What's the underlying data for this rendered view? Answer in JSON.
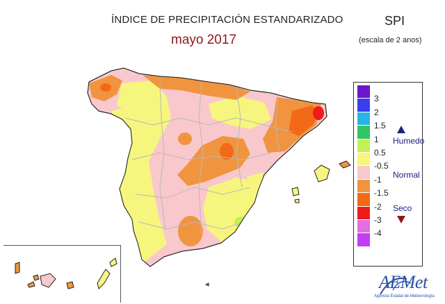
{
  "title": "ÍNDICE DE PRECIPITACIÓN ESTANDARIZADO",
  "subtitle": "mayo 2017",
  "index_name": "SPI",
  "scale_note": "(escala de 2 anos)",
  "legend": {
    "classes": [
      {
        "color": "#6b16c9",
        "label": "3"
      },
      {
        "color": "#3d3df0",
        "label": "2"
      },
      {
        "color": "#27b4e8",
        "label": "1.5"
      },
      {
        "color": "#33c463",
        "label": "1"
      },
      {
        "color": "#c3f058",
        "label": "0.5"
      },
      {
        "color": "#f6f67e",
        "label": "-0.5"
      },
      {
        "color": "#f9c8cc",
        "label": "-1"
      },
      {
        "color": "#f19440",
        "label": "-1.5"
      },
      {
        "color": "#f26a18",
        "label": "-2"
      },
      {
        "color": "#ef1a1a",
        "label": "-3"
      },
      {
        "color": "#e36ee0",
        "label": "-4"
      },
      {
        "color": "#c23df5",
        "label": ""
      }
    ],
    "wet_label": "Humedo",
    "normal_label": "Normal",
    "dry_label": "Seco"
  },
  "colors": {
    "normal": "#f9c8cc",
    "slightly_wet": "#f6f67e",
    "wet": "#c3f058",
    "dry": "#f19440",
    "very_dry": "#f26a18",
    "extremely_dry": "#ef1a1a"
  },
  "logo": {
    "name": "AEMet",
    "tagline": "Agencia Estatal de Meteorología"
  }
}
